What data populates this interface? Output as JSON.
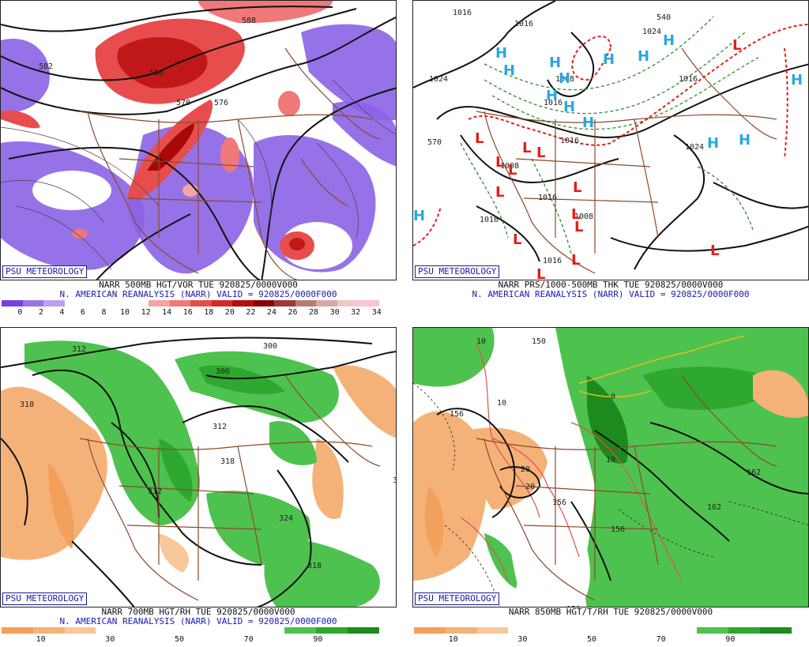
{
  "panels": [
    {
      "id": "p1",
      "logo": "PSU METEOROLOGY",
      "caption_line1": "NARR 500MB HGT/VOR TUE 920825/0000V000",
      "caption_line2": "N. AMERICAN REANALYSIS (NARR) VALID = 920825/0000F000",
      "legend": {
        "colors": [
          "#7a3fe0",
          "#9a73ea",
          "#b9a3f0",
          "#ffffff",
          "#ffffff",
          "#ffffff",
          "#ffffff",
          "#f6a3a3",
          "#f07878",
          "#e84d4d",
          "#d42a2a",
          "#b30f0f",
          "#8a0000",
          "#9a3a3a",
          "#b97a7a",
          "#d8a8a8",
          "#f0c8c8",
          "#ffc0d8"
        ],
        "ticks": [
          "0",
          "2",
          "4",
          "6",
          "8",
          "10",
          "12",
          "14",
          "16",
          "18",
          "20",
          "22",
          "24",
          "26",
          "28",
          "30",
          "32",
          "34"
        ]
      },
      "contour_labels": [
        "582",
        "558",
        "570",
        "576",
        "588"
      ]
    },
    {
      "id": "p2",
      "logo": "PSU METEOROLOGY",
      "caption_line1": "NARR PRS/1000-500MB THK TUE 920825/0000V000",
      "caption_line2": "N. AMERICAN REANALYSIS (NARR) VALID = 920825/0000F000",
      "contour_labels": [
        "1016",
        "1016",
        "1024",
        "1024",
        "1016",
        "1016",
        "1024",
        "1008",
        "1016",
        "1016",
        "1016",
        "1016",
        "570",
        "540",
        "1008",
        "1008"
      ],
      "highs": [
        "H",
        "H",
        "H",
        "H",
        "H",
        "H",
        "H",
        "H",
        "H",
        "H",
        "H",
        "H",
        "H",
        "H"
      ],
      "lows": [
        "L",
        "L",
        "L",
        "L",
        "L",
        "L",
        "L",
        "L",
        "L",
        "L",
        "L",
        "L",
        "L",
        "L"
      ]
    },
    {
      "id": "p3",
      "logo": "PSU METEOROLOGY",
      "caption_line1": "NARR 700MB HGT/RH TUE 920825/0000V000",
      "caption_line2": "N. AMERICAN REANALYSIS (NARR) VALID = 920825/0000F000",
      "legend": {
        "colors": [
          "#f2a05a",
          "#f5b278",
          "#f8c89a",
          "#ffffff",
          "#ffffff",
          "#ffffff",
          "#ffffff",
          "#ffffff",
          "#ffffff",
          "#4ec24e",
          "#2ea82e",
          "#1c8a1c"
        ],
        "ticks": [
          "10",
          "30",
          "50",
          "70",
          "90"
        ]
      },
      "contour_labels": [
        "312",
        "300",
        "318",
        "306",
        "312",
        "318",
        "312",
        "324",
        "318",
        "3"
      ]
    },
    {
      "id": "p4",
      "logo": "PSU METEOROLOGY",
      "caption_line1": "NARR 850MB HGT/T/RH TUE 920825/0000V000",
      "caption_line2": "",
      "legend": {
        "colors": [
          "#f2a05a",
          "#f5b278",
          "#f8c89a",
          "#ffffff",
          "#ffffff",
          "#ffffff",
          "#ffffff",
          "#ffffff",
          "#ffffff",
          "#4ec24e",
          "#2ea82e",
          "#1c8a1c"
        ],
        "ticks": [
          "10",
          "30",
          "50",
          "70",
          "90"
        ]
      },
      "contour_labels": [
        "156",
        "156",
        "156",
        "150",
        "162",
        "162",
        "150",
        "10",
        "10",
        "20",
        "20",
        "0",
        "10"
      ]
    }
  ]
}
